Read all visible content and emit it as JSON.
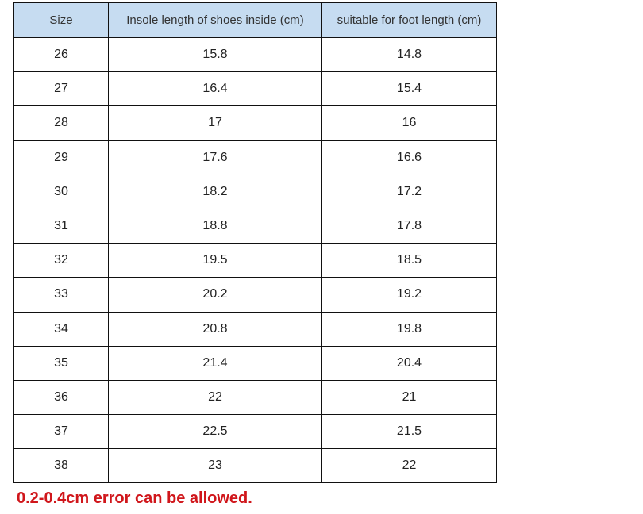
{
  "table": {
    "headers": [
      "Size",
      "Insole length of shoes inside (cm)",
      "suitable for foot length (cm)"
    ],
    "rows": [
      [
        "26",
        "15.8",
        "14.8"
      ],
      [
        "27",
        "16.4",
        "15.4"
      ],
      [
        "28",
        "17",
        "16"
      ],
      [
        "29",
        "17.6",
        "16.6"
      ],
      [
        "30",
        "18.2",
        "17.2"
      ],
      [
        "31",
        "18.8",
        "17.8"
      ],
      [
        "32",
        "19.5",
        "18.5"
      ],
      [
        "33",
        "20.2",
        "19.2"
      ],
      [
        "34",
        "20.8",
        "19.8"
      ],
      [
        "35",
        "21.4",
        "20.4"
      ],
      [
        "36",
        "22",
        "21"
      ],
      [
        "37",
        "22.5",
        "21.5"
      ],
      [
        "38",
        "23",
        "22"
      ]
    ]
  },
  "note": "0.2-0.4cm error can be allowed.",
  "colors": {
    "header_bg": "#c6dcf1",
    "note": "#d0161b"
  }
}
